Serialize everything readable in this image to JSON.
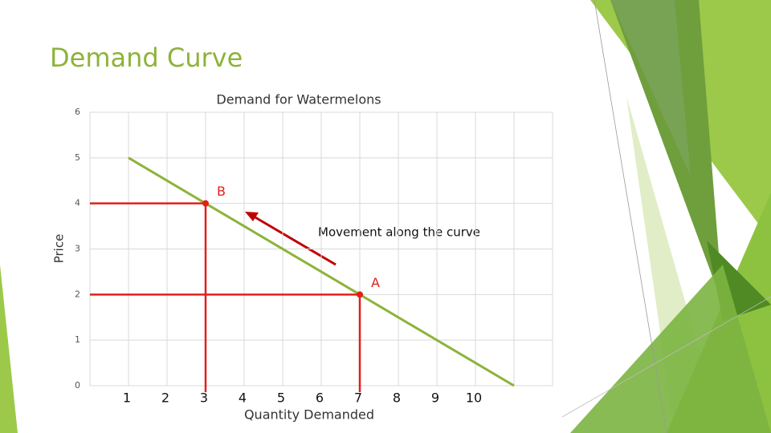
{
  "slide_title": "Demand Curve",
  "chart_data": {
    "type": "line",
    "title": "Demand for Watermelons",
    "x_label": "Quantity Demanded",
    "y_label": "Price",
    "xlim": [
      0,
      12
    ],
    "xticks": [
      1,
      2,
      3,
      4,
      5,
      6,
      7,
      8,
      9,
      10
    ],
    "ylim": [
      0,
      6
    ],
    "yticks": [
      0,
      1,
      2,
      3,
      4,
      5,
      6
    ],
    "grid": true,
    "demand": {
      "x": [
        1,
        11
      ],
      "y": [
        5,
        0
      ],
      "color": "#8db33a"
    },
    "points": [
      {
        "label": "B",
        "x": 3,
        "y": 4
      },
      {
        "label": "A",
        "x": 7,
        "y": 2
      }
    ],
    "point_color": "#e0201b",
    "annotation": "Movement along the curve"
  }
}
